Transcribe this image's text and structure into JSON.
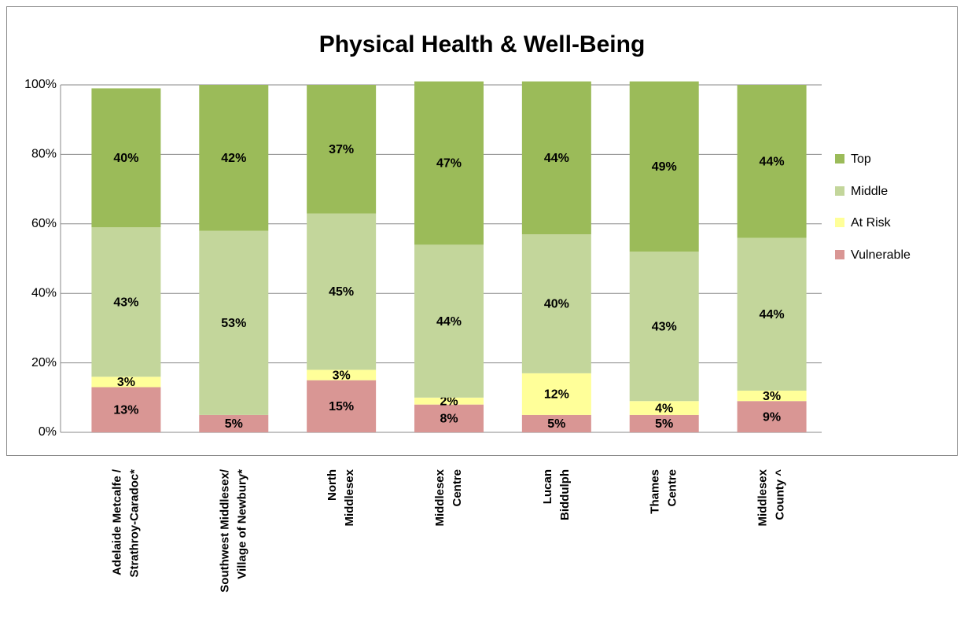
{
  "chart_data": {
    "type": "stacked_bar",
    "title": "Physical Health & Well-Being",
    "categories": [
      [
        "Adelaide Metcalfe /",
        "Strathroy-Caradoc*"
      ],
      [
        "Southwest Middlesex/",
        "Village of Newbury*"
      ],
      [
        "North",
        "Middlesex"
      ],
      [
        "Middlesex",
        "Centre"
      ],
      [
        "Lucan",
        "Biddulph"
      ],
      [
        "Thames",
        "Centre"
      ],
      [
        "Middlesex",
        "County ^"
      ]
    ],
    "series": [
      {
        "name": "Vulnerable",
        "color": "#d99694",
        "values": [
          13,
          5,
          15,
          8,
          5,
          5,
          9
        ],
        "value_labels": [
          "13%",
          "5%",
          "15%",
          "8%",
          "5%",
          "5%",
          "9%"
        ]
      },
      {
        "name": "At Risk",
        "color": "#ffff99",
        "values": [
          3,
          null,
          3,
          2,
          12,
          4,
          3
        ],
        "value_labels": [
          "3%",
          null,
          "3%",
          "2%",
          "12%",
          "4%",
          "3%"
        ]
      },
      {
        "name": "Middle",
        "color": "#c3d69b",
        "values": [
          43,
          53,
          45,
          44,
          40,
          43,
          44
        ],
        "value_labels": [
          "43%",
          "53%",
          "45%",
          "44%",
          "40%",
          "43%",
          "44%"
        ]
      },
      {
        "name": "Top",
        "color": "#9bbb59",
        "values": [
          40,
          42,
          37,
          47,
          44,
          49,
          44
        ],
        "value_labels": [
          "40%",
          "42%",
          "37%",
          "47%",
          "44%",
          "49%",
          "44%"
        ]
      }
    ],
    "ylim": [
      0,
      100
    ],
    "yticks": [
      {
        "value": 0,
        "label": "0%"
      },
      {
        "value": 20,
        "label": "20%"
      },
      {
        "value": 40,
        "label": "40%"
      },
      {
        "value": 60,
        "label": "60%"
      },
      {
        "value": 80,
        "label": "80%"
      },
      {
        "value": 100,
        "label": "100%"
      }
    ],
    "grid": true,
    "legend": "right"
  }
}
